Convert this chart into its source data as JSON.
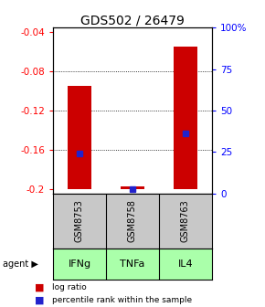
{
  "title": "GDS502 / 26479",
  "samples": [
    "GSM8753",
    "GSM8758",
    "GSM8763"
  ],
  "agents": [
    "IFNg",
    "TNFa",
    "IL4"
  ],
  "log_ratios": [
    -0.095,
    -0.197,
    -0.055
  ],
  "percentile_ranks": [
    24.0,
    2.5,
    36.0
  ],
  "ylim": [
    -0.204,
    -0.036
  ],
  "bar_bottom": -0.2,
  "yticks_left": [
    -0.2,
    -0.16,
    -0.12,
    -0.08,
    -0.04
  ],
  "ytick_left_labels": [
    "-0.2",
    "-0.16",
    "-0.12",
    "-0.08",
    "-0.04"
  ],
  "yticks_right_pct": [
    0,
    25,
    50,
    75,
    100
  ],
  "ytick_right_labels": [
    "0",
    "25",
    "50",
    "75",
    "100%"
  ],
  "bar_color": "#cc0000",
  "marker_color": "#2222cc",
  "sample_bg": "#c8c8c8",
  "agent_bg": "#aaffaa",
  "title_fontsize": 10,
  "tick_fontsize": 7.5,
  "sample_fontsize": 7,
  "agent_fontsize": 8
}
